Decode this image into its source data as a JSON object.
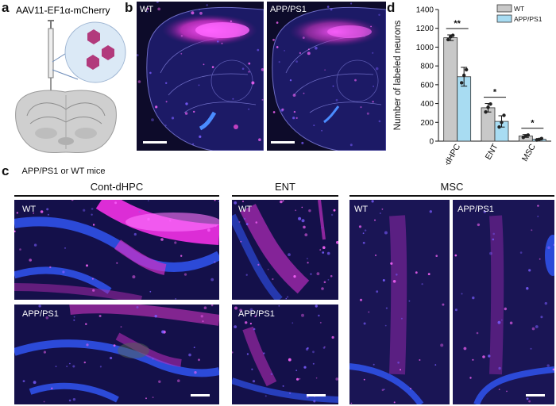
{
  "panel_a": {
    "letter": "a",
    "virus_label": "AAV11-EF1α-mCherry",
    "mice_label": "APP/PS1 or WT mice",
    "accent": "#c0287a"
  },
  "panel_b": {
    "letter": "b",
    "left_label": "WT",
    "right_label": "APP/PS1"
  },
  "panel_c": {
    "letter": "c",
    "groups": [
      "Cont-dHPC",
      "ENT",
      "MSC"
    ],
    "labels": {
      "cont_wt": "WT",
      "cont_app": "APP/PS1",
      "ent_wt": "WT",
      "ent_app": "APP/PS1",
      "msc_wt": "WT",
      "msc_app": "APP/PS1"
    }
  },
  "panel_d": {
    "letter": "d",
    "significance": [
      "**",
      "*",
      "*"
    ]
  },
  "chart_data": {
    "type": "bar",
    "ylabel": "Number of labeled neurons",
    "xlabel": "",
    "title": "",
    "categories": [
      "Cont-dHPC",
      "ENT",
      "MSC"
    ],
    "ylim": [
      0,
      1400
    ],
    "yticks": [
      0,
      200,
      400,
      600,
      800,
      1000,
      1200,
      1400
    ],
    "legend_position": "top-right",
    "series": [
      {
        "name": "WT",
        "color": "#c8c8c8",
        "values": [
          1100,
          355,
          55
        ],
        "errors": [
          30,
          45,
          15
        ],
        "points": [
          [
            1080,
            1110,
            1125
          ],
          [
            310,
            360,
            395
          ],
          [
            40,
            55,
            65
          ]
        ]
      },
      {
        "name": "APP/PS1",
        "color": "#a8dcf2",
        "values": [
          685,
          210,
          20
        ],
        "errors": [
          100,
          60,
          8
        ],
        "points": [
          [
            620,
            700,
            760
          ],
          [
            150,
            200,
            275
          ],
          [
            12,
            18,
            28
          ]
        ]
      }
    ]
  }
}
